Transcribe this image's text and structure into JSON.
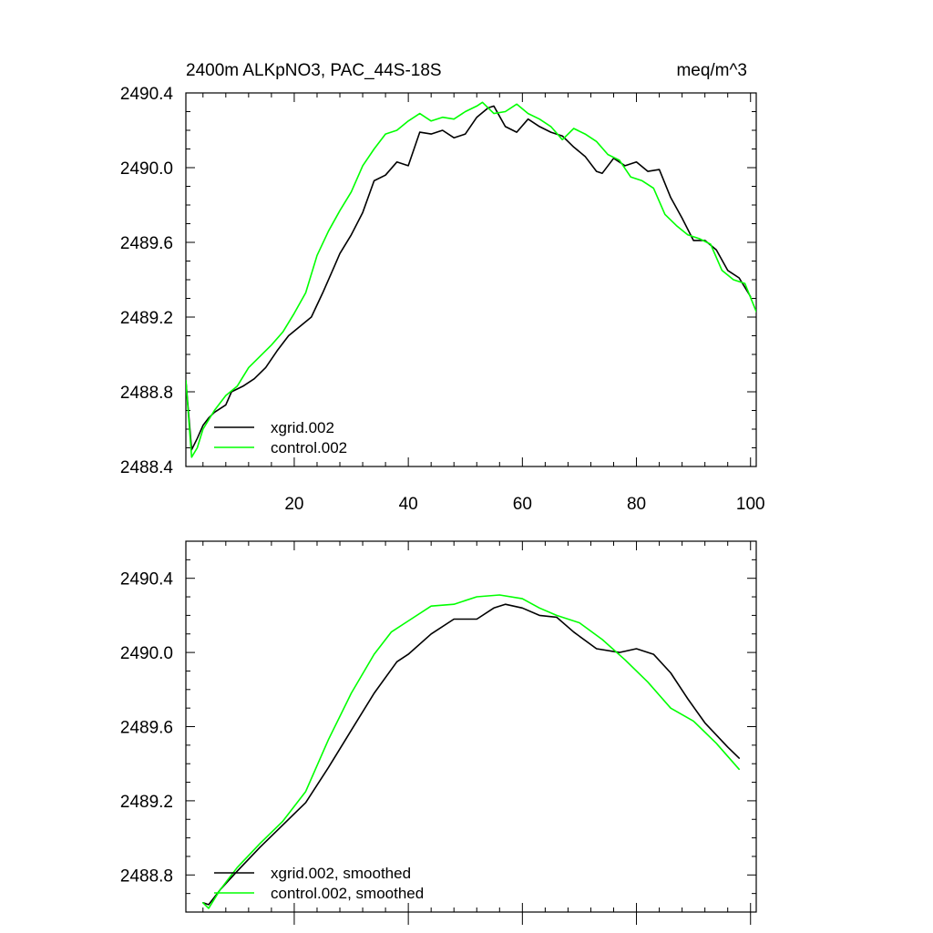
{
  "chart_data": [
    {
      "type": "line",
      "title": "2400m ALKpNO3, PAC_44S-18S",
      "units": "meq/m^3",
      "xlim": [
        1,
        101
      ],
      "ylim": [
        2488.4,
        2490.4
      ],
      "xticks": [
        20,
        40,
        60,
        80,
        100
      ],
      "xtick_labels": [
        "20",
        "40",
        "60",
        "80",
        "100"
      ],
      "yticks": [
        2488.4,
        2488.8,
        2489.2,
        2489.6,
        2490.0,
        2490.4
      ],
      "ytick_labels": [
        "2488.4",
        "2488.8",
        "2489.2",
        "2489.6",
        "2490.0",
        "2490.4"
      ],
      "legend_position": "bottom-left",
      "series": [
        {
          "name": "xgrid.002",
          "color": "#000000",
          "points": [
            [
              1,
              2488.86
            ],
            [
              2,
              2488.49
            ],
            [
              3,
              2488.55
            ],
            [
              4,
              2488.62
            ],
            [
              5,
              2488.66
            ],
            [
              6,
              2488.69
            ],
            [
              8,
              2488.73
            ],
            [
              9,
              2488.8
            ],
            [
              11,
              2488.83
            ],
            [
              13,
              2488.87
            ],
            [
              15,
              2488.93
            ],
            [
              17,
              2489.02
            ],
            [
              19,
              2489.1
            ],
            [
              21,
              2489.15
            ],
            [
              23,
              2489.2
            ],
            [
              25,
              2489.33
            ],
            [
              27,
              2489.47
            ],
            [
              28,
              2489.54
            ],
            [
              30,
              2489.64
            ],
            [
              32,
              2489.76
            ],
            [
              34,
              2489.93
            ],
            [
              36,
              2489.96
            ],
            [
              38,
              2490.03
            ],
            [
              40,
              2490.01
            ],
            [
              42,
              2490.19
            ],
            [
              44,
              2490.18
            ],
            [
              46,
              2490.2
            ],
            [
              48,
              2490.16
            ],
            [
              50,
              2490.18
            ],
            [
              52,
              2490.27
            ],
            [
              54,
              2490.32
            ],
            [
              55,
              2490.33
            ],
            [
              57,
              2490.22
            ],
            [
              59,
              2490.19
            ],
            [
              61,
              2490.26
            ],
            [
              63,
              2490.22
            ],
            [
              65,
              2490.19
            ],
            [
              67,
              2490.17
            ],
            [
              69,
              2490.11
            ],
            [
              71,
              2490.06
            ],
            [
              73,
              2489.98
            ],
            [
              74,
              2489.97
            ],
            [
              76,
              2490.05
            ],
            [
              78,
              2490.01
            ],
            [
              80,
              2490.03
            ],
            [
              82,
              2489.98
            ],
            [
              84,
              2489.99
            ],
            [
              86,
              2489.84
            ],
            [
              88,
              2489.73
            ],
            [
              90,
              2489.61
            ],
            [
              92,
              2489.61
            ],
            [
              94,
              2489.56
            ],
            [
              96,
              2489.45
            ],
            [
              98,
              2489.41
            ],
            [
              100,
              2489.31
            ]
          ]
        },
        {
          "name": "control.002",
          "color": "#00ff00",
          "points": [
            [
              1,
              2488.86
            ],
            [
              2,
              2488.45
            ],
            [
              3,
              2488.5
            ],
            [
              4,
              2488.6
            ],
            [
              6,
              2488.7
            ],
            [
              8,
              2488.78
            ],
            [
              10,
              2488.83
            ],
            [
              12,
              2488.93
            ],
            [
              14,
              2488.99
            ],
            [
              16,
              2489.05
            ],
            [
              18,
              2489.12
            ],
            [
              20,
              2489.22
            ],
            [
              22,
              2489.33
            ],
            [
              24,
              2489.53
            ],
            [
              26,
              2489.66
            ],
            [
              28,
              2489.77
            ],
            [
              30,
              2489.87
            ],
            [
              32,
              2490.01
            ],
            [
              34,
              2490.1
            ],
            [
              36,
              2490.18
            ],
            [
              38,
              2490.2
            ],
            [
              40,
              2490.25
            ],
            [
              42,
              2490.29
            ],
            [
              44,
              2490.25
            ],
            [
              46,
              2490.27
            ],
            [
              48,
              2490.26
            ],
            [
              50,
              2490.3
            ],
            [
              52,
              2490.33
            ],
            [
              53,
              2490.35
            ],
            [
              55,
              2490.29
            ],
            [
              57,
              2490.3
            ],
            [
              59,
              2490.34
            ],
            [
              61,
              2490.29
            ],
            [
              63,
              2490.26
            ],
            [
              65,
              2490.22
            ],
            [
              67,
              2490.15
            ],
            [
              69,
              2490.21
            ],
            [
              71,
              2490.18
            ],
            [
              73,
              2490.14
            ],
            [
              75,
              2490.07
            ],
            [
              77,
              2490.04
            ],
            [
              79,
              2489.95
            ],
            [
              81,
              2489.93
            ],
            [
              83,
              2489.89
            ],
            [
              85,
              2489.75
            ],
            [
              87,
              2489.69
            ],
            [
              89,
              2489.64
            ],
            [
              91,
              2489.62
            ],
            [
              93,
              2489.59
            ],
            [
              95,
              2489.45
            ],
            [
              97,
              2489.4
            ],
            [
              99,
              2489.38
            ],
            [
              101,
              2489.23
            ]
          ]
        }
      ]
    },
    {
      "type": "line",
      "title": "",
      "xlim": [
        1,
        101
      ],
      "ylim": [
        2488.6,
        2490.6
      ],
      "xticks": [
        20,
        40,
        60,
        80,
        100
      ],
      "xtick_labels": [],
      "yticks": [
        2488.8,
        2489.2,
        2489.6,
        2490.0,
        2490.4
      ],
      "ytick_labels": [
        "2488.8",
        "2489.2",
        "2489.6",
        "2490.0",
        "2490.4"
      ],
      "legend_position": "bottom-left",
      "series": [
        {
          "name": "xgrid.002, smoothed",
          "color": "#000000",
          "points": [
            [
              4,
              2488.65
            ],
            [
              5,
              2488.64
            ],
            [
              7,
              2488.72
            ],
            [
              10,
              2488.82
            ],
            [
              14,
              2488.95
            ],
            [
              18,
              2489.07
            ],
            [
              22,
              2489.19
            ],
            [
              26,
              2489.38
            ],
            [
              30,
              2489.58
            ],
            [
              34,
              2489.78
            ],
            [
              38,
              2489.95
            ],
            [
              40,
              2489.99
            ],
            [
              44,
              2490.1
            ],
            [
              48,
              2490.18
            ],
            [
              52,
              2490.18
            ],
            [
              55,
              2490.24
            ],
            [
              57,
              2490.26
            ],
            [
              60,
              2490.24
            ],
            [
              63,
              2490.2
            ],
            [
              66,
              2490.19
            ],
            [
              69,
              2490.11
            ],
            [
              73,
              2490.02
            ],
            [
              77,
              2490.0
            ],
            [
              80,
              2490.02
            ],
            [
              83,
              2489.99
            ],
            [
              86,
              2489.89
            ],
            [
              89,
              2489.75
            ],
            [
              92,
              2489.62
            ],
            [
              96,
              2489.49
            ],
            [
              98,
              2489.43
            ]
          ]
        },
        {
          "name": "control.002, smoothed",
          "color": "#00ff00",
          "points": [
            [
              4,
              2488.65
            ],
            [
              5,
              2488.62
            ],
            [
              7,
              2488.72
            ],
            [
              10,
              2488.84
            ],
            [
              14,
              2488.97
            ],
            [
              18,
              2489.09
            ],
            [
              22,
              2489.25
            ],
            [
              26,
              2489.53
            ],
            [
              30,
              2489.78
            ],
            [
              34,
              2489.99
            ],
            [
              37,
              2490.11
            ],
            [
              40,
              2490.17
            ],
            [
              44,
              2490.25
            ],
            [
              48,
              2490.26
            ],
            [
              52,
              2490.3
            ],
            [
              56,
              2490.31
            ],
            [
              60,
              2490.29
            ],
            [
              63,
              2490.24
            ],
            [
              66,
              2490.2
            ],
            [
              70,
              2490.16
            ],
            [
              74,
              2490.07
            ],
            [
              78,
              2489.96
            ],
            [
              82,
              2489.84
            ],
            [
              86,
              2489.7
            ],
            [
              90,
              2489.63
            ],
            [
              94,
              2489.51
            ],
            [
              98,
              2489.37
            ]
          ]
        }
      ]
    }
  ]
}
